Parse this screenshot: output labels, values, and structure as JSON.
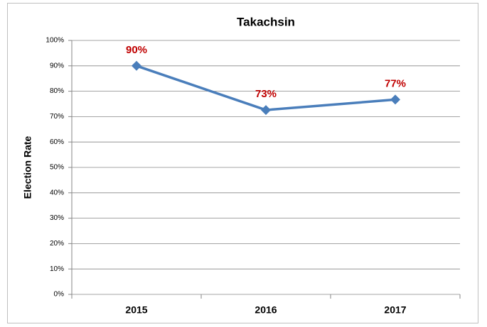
{
  "chart_data": {
    "type": "line",
    "title": "Takachsin",
    "y_label": "Election Rate",
    "categories": [
      "2015",
      "2016",
      "2017"
    ],
    "series": [
      {
        "name": "Election Rate",
        "color": "#4a7ebb",
        "values": [
          90,
          72.6,
          76.7
        ],
        "value_labels": [
          "90%",
          "73%",
          "77%"
        ],
        "label_color": "#c00000"
      }
    ],
    "ylim": [
      0,
      100
    ],
    "yticks": [
      {
        "value": 0,
        "label": "0%"
      },
      {
        "value": 10,
        "label": "10%"
      },
      {
        "value": 20,
        "label": "20%"
      },
      {
        "value": 30,
        "label": "30%"
      },
      {
        "value": 40,
        "label": "40%"
      },
      {
        "value": 50,
        "label": "50%"
      },
      {
        "value": 60,
        "label": "60%"
      },
      {
        "value": 70,
        "label": "70%"
      },
      {
        "value": 80,
        "label": "80%"
      },
      {
        "value": 90,
        "label": "90%"
      },
      {
        "value": 100,
        "label": "100%"
      }
    ],
    "grid": true,
    "legend": false
  }
}
